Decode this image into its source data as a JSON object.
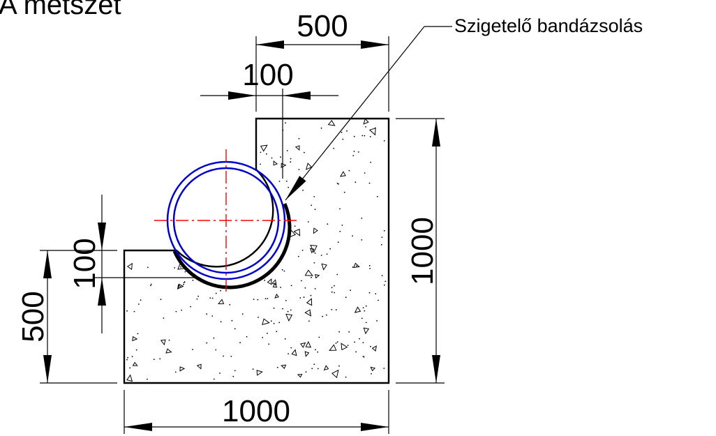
{
  "title": "A metszet",
  "callout": "Szigetelő bandázsolás",
  "dimensions": {
    "top_width": "500",
    "top_offset": "100",
    "total_height": "1000",
    "left_height": "500",
    "left_offset": "100",
    "bottom_width": "1000"
  },
  "colors": {
    "pipe": "#0000cc",
    "centerline": "#ff0000",
    "line": "#000000"
  }
}
